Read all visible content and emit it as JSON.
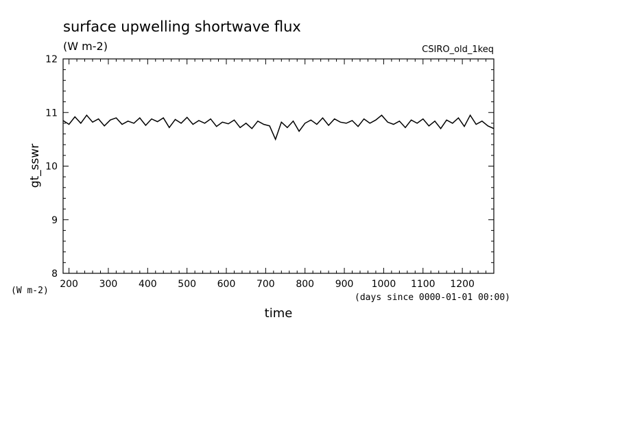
{
  "chart_data": {
    "type": "line",
    "title": "surface upwelling shortwave flux",
    "subtitle": "(W m-2)",
    "source_label": "CSIRO_old_1keq",
    "ylabel": "gt_sswr",
    "yunits": "(W m-2)",
    "xlabel": "time",
    "xunits": "(days since 0000-01-01 00:00)",
    "xlim": [
      185,
      1280
    ],
    "ylim": [
      8,
      12
    ],
    "x_ticks": [
      200,
      300,
      400,
      500,
      600,
      700,
      800,
      900,
      1000,
      1100,
      1200
    ],
    "x_tick_labels": [
      "200",
      "300",
      "400",
      "500",
      "600",
      "700",
      "800",
      "900",
      "1000",
      "1100",
      "1200"
    ],
    "y_ticks": [
      8,
      9,
      10,
      11,
      12
    ],
    "y_tick_labels": [
      "8",
      "9",
      "10",
      "11",
      "12"
    ],
    "grid": false,
    "line_color": "#000000",
    "x": [
      185,
      200,
      215,
      230,
      245,
      260,
      275,
      290,
      305,
      320,
      335,
      350,
      365,
      380,
      395,
      410,
      425,
      440,
      455,
      470,
      485,
      500,
      515,
      530,
      545,
      560,
      575,
      590,
      605,
      620,
      635,
      650,
      665,
      680,
      695,
      710,
      725,
      740,
      755,
      770,
      785,
      800,
      815,
      830,
      845,
      860,
      875,
      890,
      905,
      920,
      935,
      950,
      965,
      980,
      995,
      1010,
      1025,
      1040,
      1055,
      1070,
      1085,
      1100,
      1115,
      1130,
      1145,
      1160,
      1175,
      1190,
      1205,
      1220,
      1235,
      1250,
      1265,
      1280
    ],
    "y": [
      10.85,
      10.78,
      10.92,
      10.8,
      10.95,
      10.82,
      10.88,
      10.75,
      10.86,
      10.9,
      10.78,
      10.84,
      10.8,
      10.9,
      10.76,
      10.88,
      10.83,
      10.9,
      10.72,
      10.87,
      10.8,
      10.91,
      10.78,
      10.85,
      10.8,
      10.88,
      10.74,
      10.82,
      10.79,
      10.86,
      10.72,
      10.8,
      10.7,
      10.84,
      10.78,
      10.75,
      10.5,
      10.82,
      10.72,
      10.84,
      10.65,
      10.8,
      10.86,
      10.78,
      10.9,
      10.76,
      10.88,
      10.82,
      10.8,
      10.85,
      10.74,
      10.88,
      10.8,
      10.86,
      10.95,
      10.82,
      10.78,
      10.84,
      10.72,
      10.86,
      10.8,
      10.88,
      10.75,
      10.84,
      10.7,
      10.86,
      10.8,
      10.9,
      10.74,
      10.95,
      10.78,
      10.84,
      10.75,
      10.7
    ]
  }
}
